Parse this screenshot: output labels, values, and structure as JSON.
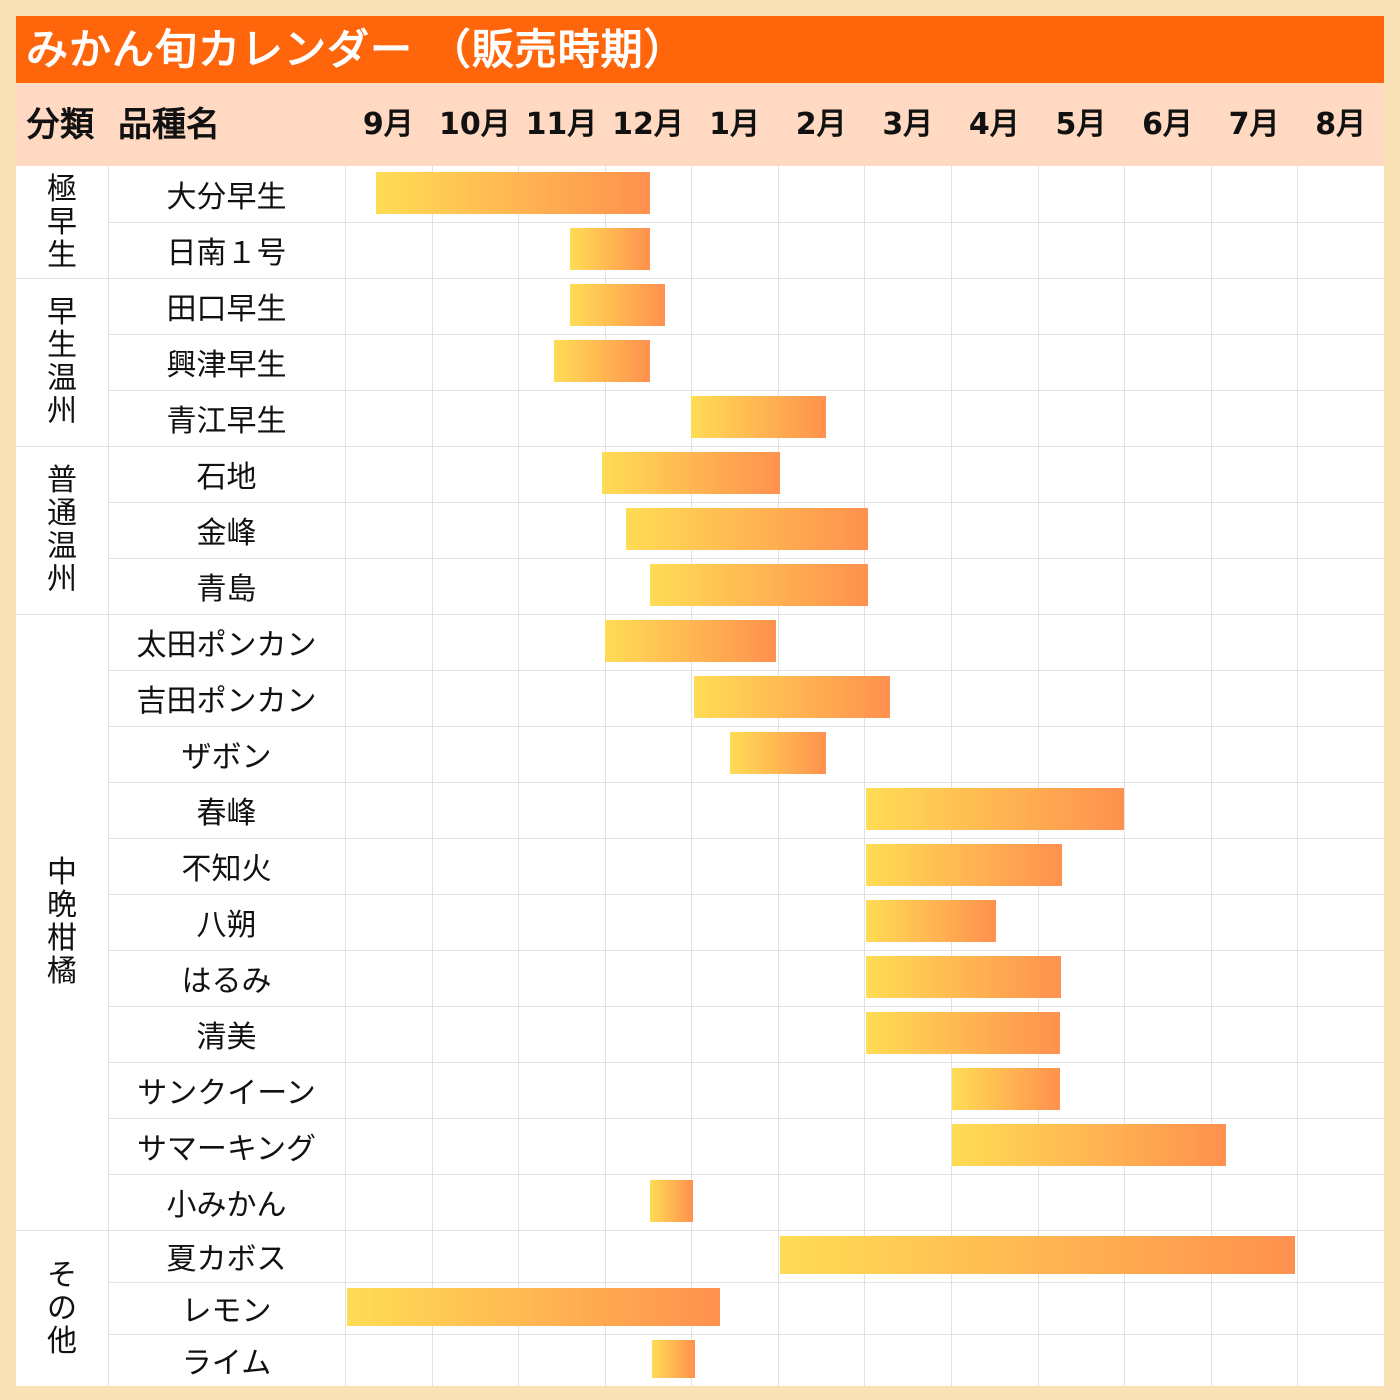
{
  "title": "みかん旬カレンダー （販売時期）",
  "header": {
    "category": "分類",
    "variety": "品種名"
  },
  "colors": {
    "title_bg": "#ff650a",
    "header_bg": "#ffd9c2",
    "bar_start": "#ffdc55",
    "bar_end": "#ff914e"
  },
  "chart_data": {
    "type": "gantt",
    "title": "みかん旬カレンダー （販売時期）",
    "months": [
      "9月",
      "10月",
      "11月",
      "12月",
      "1月",
      "2月",
      "3月",
      "4月",
      "5月",
      "6月",
      "7月",
      "8月"
    ],
    "categories": [
      {
        "name": "極早生",
        "rows": [
          0,
          1
        ]
      },
      {
        "name": "早生温州",
        "rows": [
          2,
          4
        ]
      },
      {
        "name": "普通温州",
        "rows": [
          5,
          7
        ]
      },
      {
        "name": "中晩柑橘",
        "rows": [
          8,
          18
        ]
      },
      {
        "name": "その他",
        "rows": [
          19,
          21
        ]
      }
    ],
    "note": "start/end in months from start of September",
    "series": [
      {
        "name": "大分早生",
        "start": 0.36,
        "end": 3.52
      },
      {
        "name": "日南１号",
        "start": 2.6,
        "end": 3.52
      },
      {
        "name": "田口早生",
        "start": 2.6,
        "end": 3.7
      },
      {
        "name": "興津早生",
        "start": 2.41,
        "end": 3.52
      },
      {
        "name": "青江早生",
        "start": 4.0,
        "end": 5.55
      },
      {
        "name": "石地",
        "start": 2.97,
        "end": 5.02
      },
      {
        "name": "金峰",
        "start": 3.24,
        "end": 6.04
      },
      {
        "name": "青島",
        "start": 3.52,
        "end": 6.04
      },
      {
        "name": "太田ポンカン",
        "start": 3.0,
        "end": 4.98
      },
      {
        "name": "吉田ポンカン",
        "start": 4.03,
        "end": 6.3
      },
      {
        "name": "ザボン",
        "start": 4.45,
        "end": 5.55
      },
      {
        "name": "春峰",
        "start": 6.02,
        "end": 9.0
      },
      {
        "name": "不知火",
        "start": 6.02,
        "end": 8.28
      },
      {
        "name": "八朔",
        "start": 6.02,
        "end": 7.52
      },
      {
        "name": "はるみ",
        "start": 6.02,
        "end": 8.27
      },
      {
        "name": "清美",
        "start": 6.02,
        "end": 8.26
      },
      {
        "name": "サンクイーン",
        "start": 7.01,
        "end": 8.26
      },
      {
        "name": "サマーキング",
        "start": 7.01,
        "end": 10.17
      },
      {
        "name": "小みかん",
        "start": 3.52,
        "end": 4.02
      },
      {
        "name": "夏カボス",
        "start": 5.02,
        "end": 10.97
      },
      {
        "name": "レモン",
        "start": 0.02,
        "end": 4.33
      },
      {
        "name": "ライム",
        "start": 3.55,
        "end": 4.04
      }
    ]
  }
}
